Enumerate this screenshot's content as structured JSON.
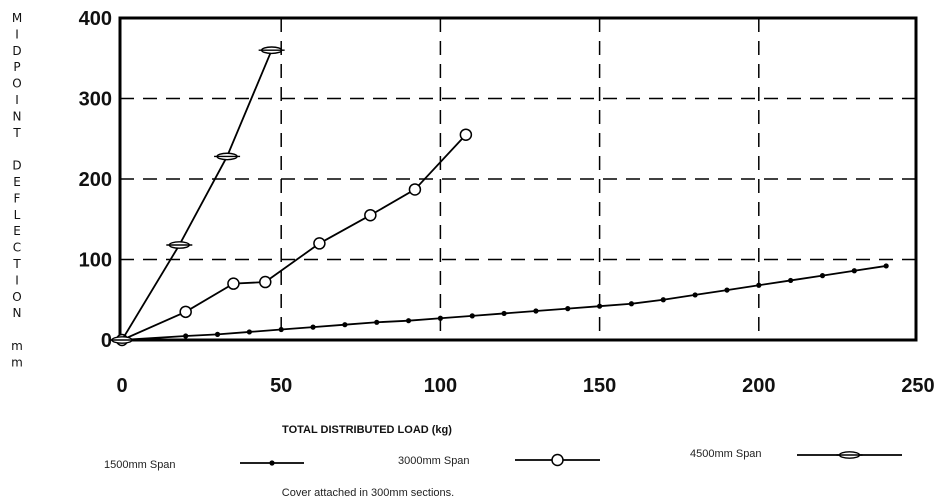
{
  "chart_data": {
    "type": "line",
    "ylabel": "MIDPOINT DEFLECTION mm",
    "ylabel_vertical": [
      "M",
      "I",
      "D",
      "P",
      "O",
      "I",
      "N",
      "T",
      "",
      "D",
      "E",
      "F",
      "L",
      "E",
      "C",
      "T",
      "I",
      "O",
      "N",
      "",
      "m",
      "m"
    ],
    "xlabel": "TOTAL DISTRIBUTED LOAD (kg)",
    "xlim": [
      0,
      250
    ],
    "ylim": [
      0,
      400
    ],
    "x_ticks": [
      "0",
      "50",
      "100",
      "150",
      "200",
      "250"
    ],
    "y_ticks": [
      "0",
      "100",
      "200",
      "300",
      "400"
    ],
    "grid": "dashed",
    "note": "Cover attached in 300mm sections.",
    "series": [
      {
        "name": "1500mm Span",
        "marker": "dot",
        "x": [
          0,
          20,
          30,
          40,
          50,
          60,
          70,
          80,
          90,
          100,
          110,
          120,
          130,
          140,
          150,
          160,
          170,
          180,
          190,
          200,
          210,
          220,
          230,
          240
        ],
        "y": [
          0,
          5,
          7,
          10,
          13,
          16,
          19,
          22,
          24,
          27,
          30,
          33,
          36,
          39,
          42,
          45,
          50,
          56,
          62,
          68,
          74,
          80,
          86,
          92
        ]
      },
      {
        "name": "3000mm Span",
        "marker": "circle",
        "x": [
          0,
          20,
          35,
          45,
          62,
          78,
          92,
          108
        ],
        "y": [
          0,
          35,
          70,
          72,
          120,
          155,
          187,
          255
        ]
      },
      {
        "name": "4500mm Span",
        "marker": "oval",
        "x": [
          0,
          18,
          33,
          47
        ],
        "y": [
          0,
          118,
          228,
          360
        ]
      }
    ]
  }
}
